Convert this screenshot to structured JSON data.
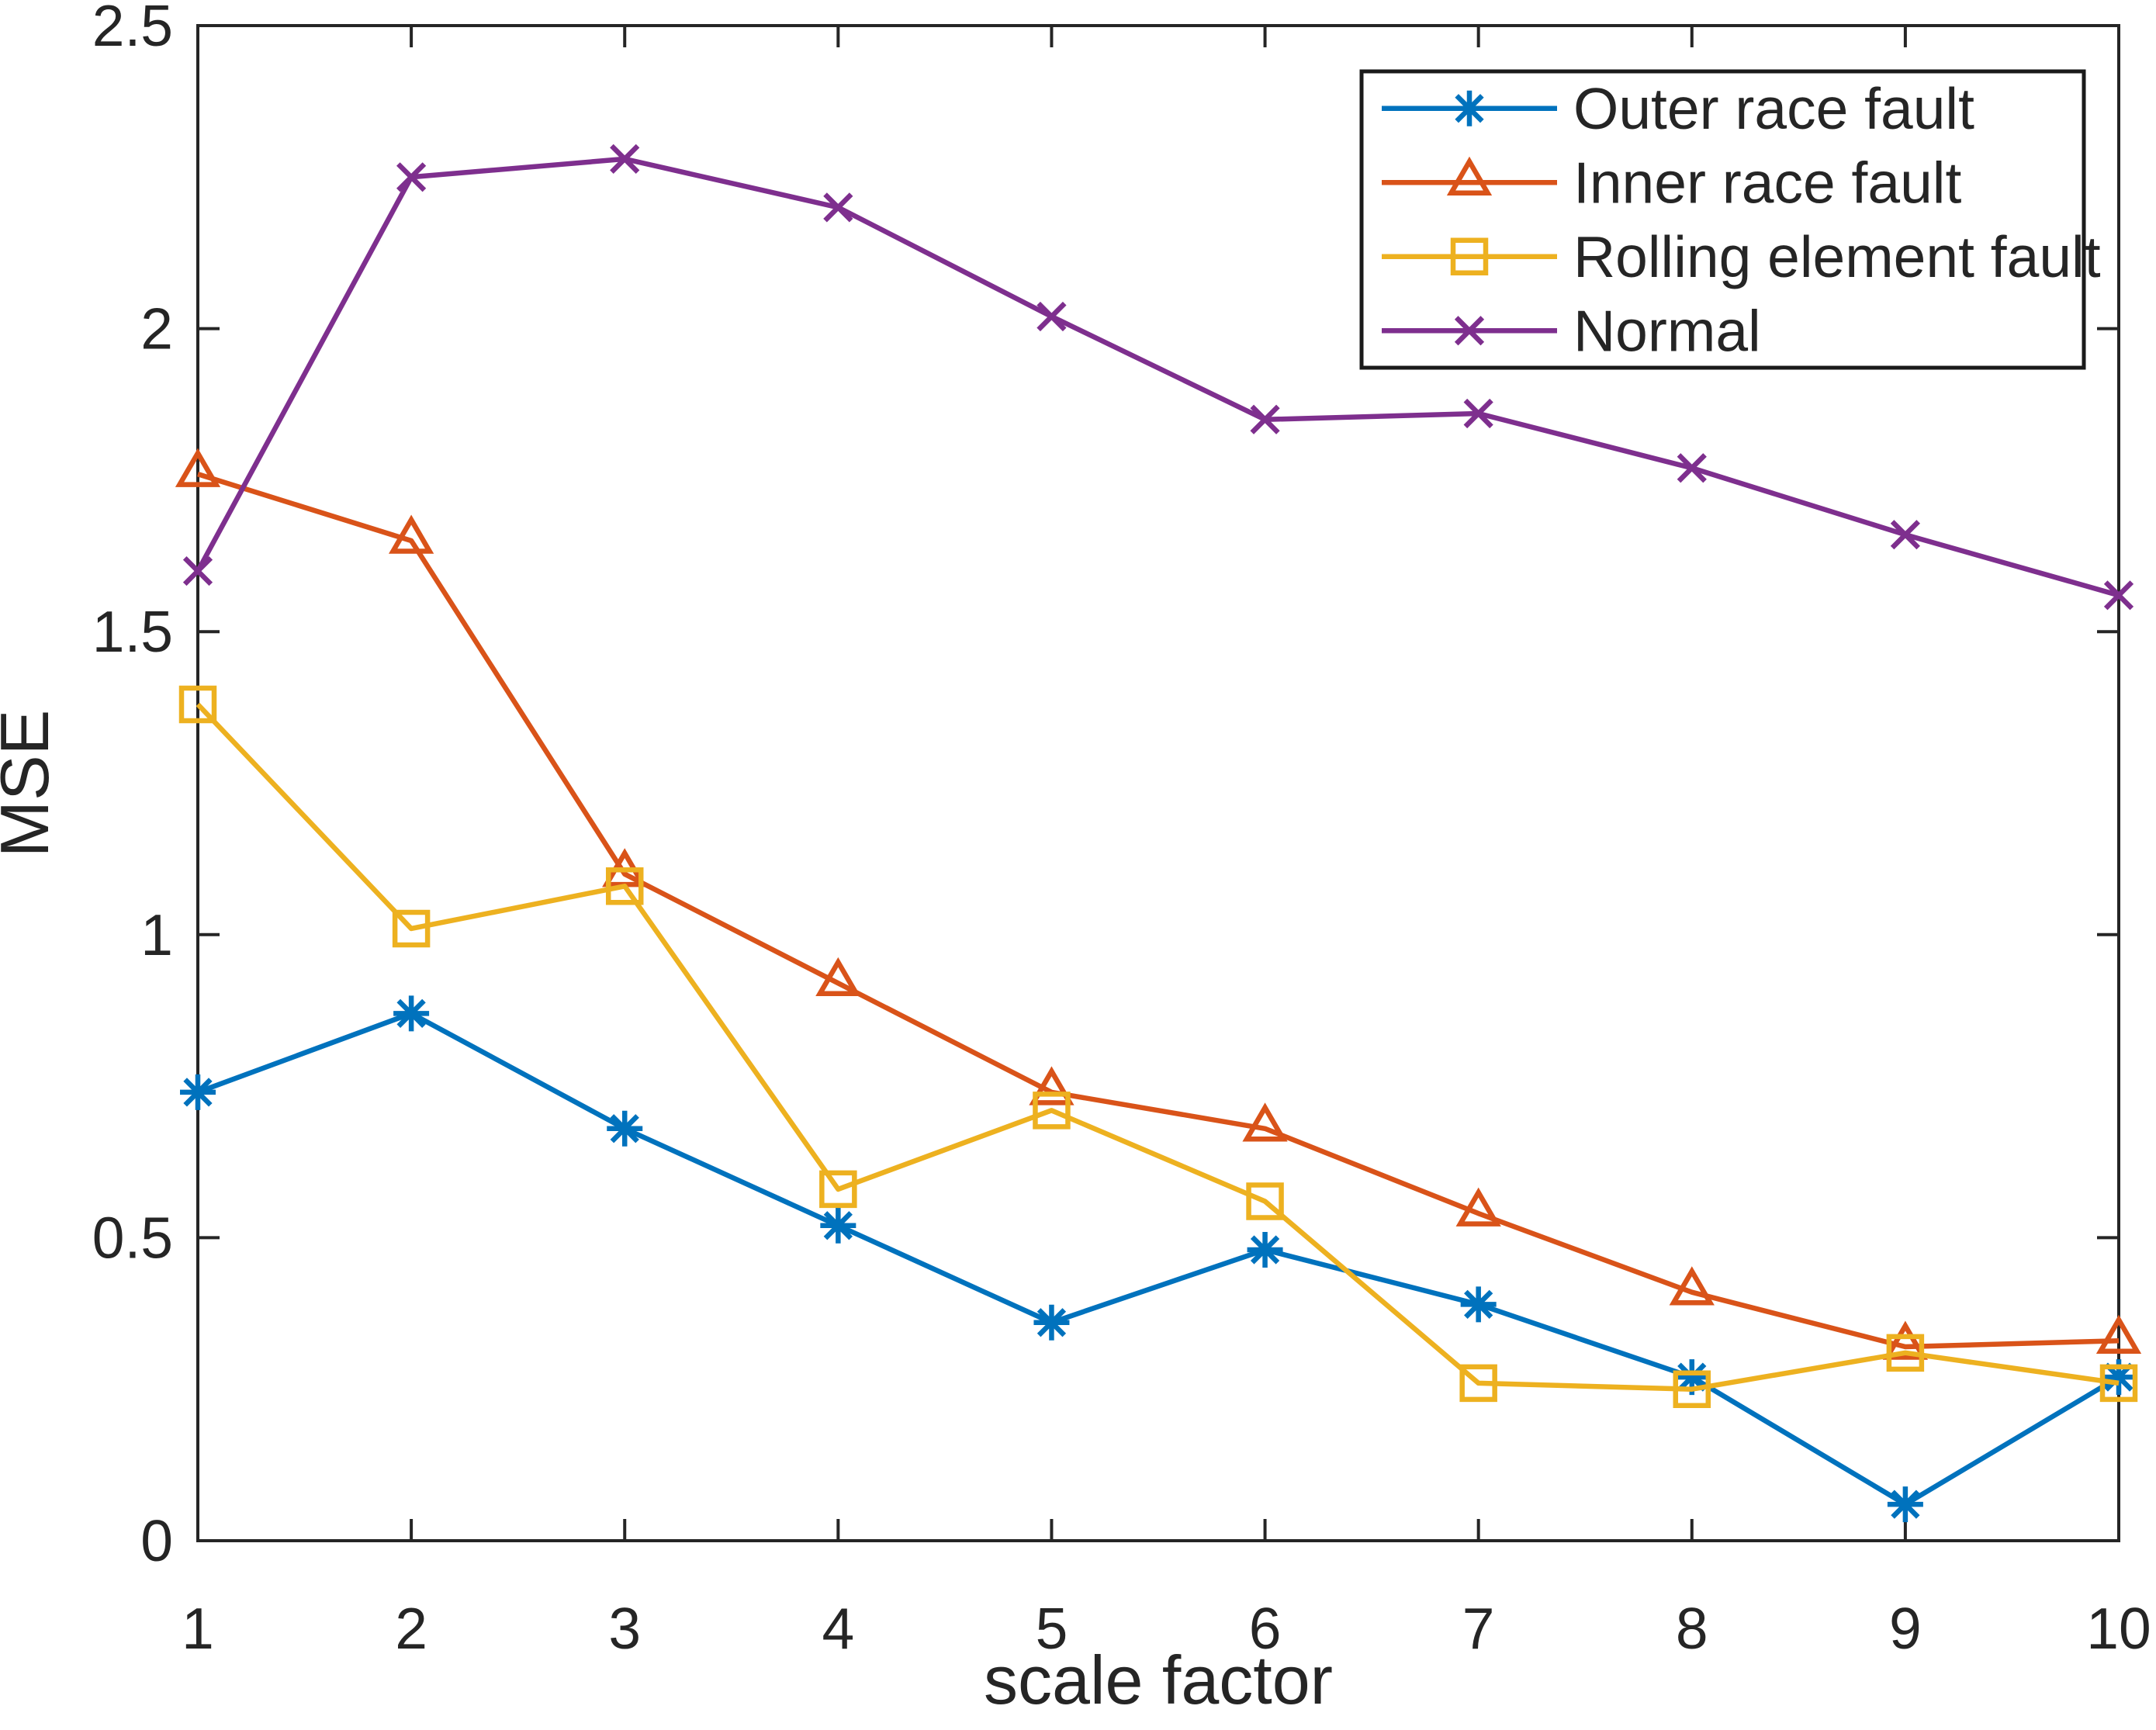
{
  "figure": {
    "background": "#ffffff",
    "axis_color": "#252525",
    "text_color": "#252525"
  },
  "chart_data": {
    "type": "line",
    "title": "",
    "xlabel": "scale factor",
    "ylabel": "MSE",
    "x": [
      1,
      2,
      3,
      4,
      5,
      6,
      7,
      8,
      9,
      10
    ],
    "xlim": [
      1,
      10
    ],
    "ylim": [
      0,
      2.5
    ],
    "xticks": [
      1,
      2,
      3,
      4,
      5,
      6,
      7,
      8,
      9,
      10
    ],
    "xtick_labels": [
      "1",
      "2",
      "3",
      "4",
      "5",
      "6",
      "7",
      "8",
      "9",
      "10"
    ],
    "yticks": [
      0,
      0.5,
      1,
      1.5,
      2,
      2.5
    ],
    "ytick_labels": [
      "0",
      "0.5",
      "1",
      "1.5",
      "2",
      "2.5"
    ],
    "grid": false,
    "legend_position": "top-right",
    "series": [
      {
        "name": "Outer race fault",
        "color": "#0072BD",
        "marker": "asterisk",
        "values": [
          0.74,
          0.87,
          0.68,
          0.52,
          0.36,
          0.48,
          0.39,
          0.27,
          0.06,
          0.27
        ]
      },
      {
        "name": "Inner race fault",
        "color": "#D95319",
        "marker": "triangle-up",
        "values": [
          1.76,
          1.65,
          1.1,
          0.92,
          0.74,
          0.68,
          0.54,
          0.41,
          0.32,
          0.33
        ]
      },
      {
        "name": "Rolling element fault",
        "color": "#EDB120",
        "marker": "square",
        "values": [
          1.38,
          1.01,
          1.08,
          0.58,
          0.71,
          0.56,
          0.26,
          0.25,
          0.31,
          0.26
        ]
      },
      {
        "name": "Normal",
        "color": "#7E2F8E",
        "marker": "x",
        "values": [
          1.6,
          2.25,
          2.28,
          2.2,
          2.02,
          1.85,
          1.86,
          1.77,
          1.66,
          1.56
        ]
      }
    ]
  }
}
